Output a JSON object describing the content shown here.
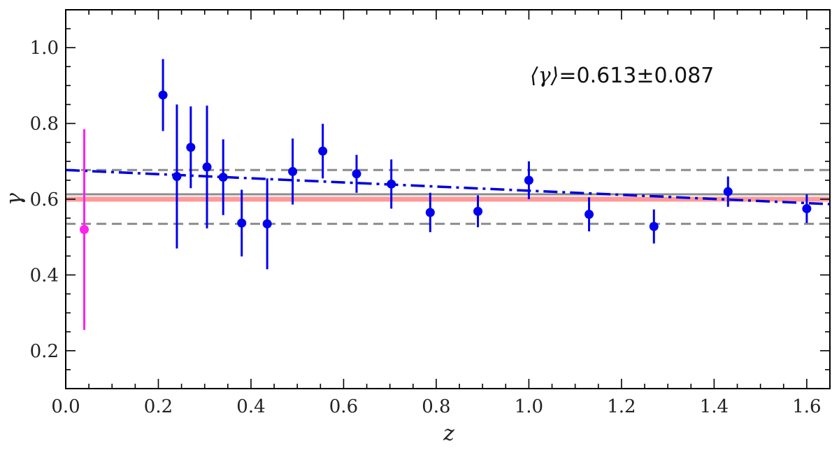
{
  "chart_data": {
    "type": "scatter",
    "xlabel": "z",
    "ylabel": "γ",
    "xlim": [
      0.0,
      1.65
    ],
    "ylim": [
      0.1,
      1.1
    ],
    "xticks": [
      "0.0",
      "0.2",
      "0.4",
      "0.6",
      "0.8",
      "1.0",
      "1.2",
      "1.4",
      "1.6"
    ],
    "yticks": [
      "0.2",
      "0.4",
      "0.6",
      "0.8",
      "1.0"
    ],
    "x_minor_step": 0.05,
    "y_minor_step": 0.05,
    "annotation": "⟨γ⟩=0.613±0.087",
    "annotation_parts": {
      "symbol": "⟨γ⟩",
      "value": "=0.613±0.087"
    },
    "colors": {
      "blue_points": "#0000ee",
      "magenta_point": "#ff22ee",
      "trend_line": "#0000dd",
      "mean_line": "#8c8c8c",
      "band_lines": "#8c8c8c",
      "reference_line": "#ff9999",
      "frame": "#000000"
    },
    "series": [
      {
        "marker": "circle",
        "color": "#ff22ee",
        "points": [
          {
            "x": 0.04,
            "y": 0.52,
            "yerr": 0.265
          }
        ]
      },
      {
        "marker": "circle",
        "color": "#0000ee",
        "points": [
          {
            "x": 0.21,
            "y": 0.875,
            "yerr": 0.095
          },
          {
            "x": 0.24,
            "y": 0.66,
            "yerr": 0.19
          },
          {
            "x": 0.27,
            "y": 0.737,
            "yerr": 0.108
          },
          {
            "x": 0.305,
            "y": 0.685,
            "yerr": 0.162
          },
          {
            "x": 0.34,
            "y": 0.658,
            "yerr": 0.1
          },
          {
            "x": 0.38,
            "y": 0.537,
            "yerr": 0.088
          },
          {
            "x": 0.435,
            "y": 0.535,
            "yerr": 0.12
          },
          {
            "x": 0.49,
            "y": 0.673,
            "yerr": 0.087
          },
          {
            "x": 0.555,
            "y": 0.727,
            "yerr": 0.072
          },
          {
            "x": 0.628,
            "y": 0.667,
            "yerr": 0.05
          },
          {
            "x": 0.703,
            "y": 0.64,
            "yerr": 0.065
          },
          {
            "x": 0.787,
            "y": 0.565,
            "yerr": 0.052
          },
          {
            "x": 0.89,
            "y": 0.568,
            "yerr": 0.042
          },
          {
            "x": 1.0,
            "y": 0.65,
            "yerr": 0.05
          },
          {
            "x": 1.13,
            "y": 0.56,
            "yerr": 0.045
          },
          {
            "x": 1.27,
            "y": 0.528,
            "yerr": 0.045
          },
          {
            "x": 1.43,
            "y": 0.62,
            "yerr": 0.04
          },
          {
            "x": 1.6,
            "y": 0.575,
            "yerr": 0.038
          }
        ]
      }
    ],
    "lines": [
      {
        "style": "dashdot",
        "color": "#0000dd",
        "x": [
          0.0,
          1.65
        ],
        "y": [
          0.677,
          0.587
        ]
      },
      {
        "style": "solid",
        "color": "#8c8c8c",
        "y_const": 0.613
      },
      {
        "style": "dashed",
        "color": "#8c8c8c",
        "y_const": 0.677
      },
      {
        "style": "dashed",
        "color": "#8c8c8c",
        "y_const": 0.535
      },
      {
        "style": "solid",
        "color": "#ff9999",
        "y_const": 0.6
      }
    ]
  }
}
